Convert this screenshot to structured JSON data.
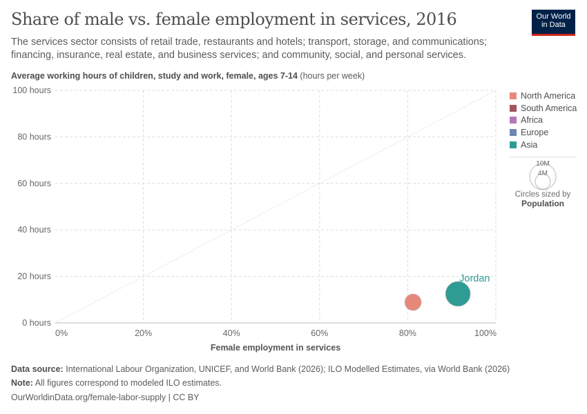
{
  "title": "Share of male vs. female employment in services, 2016",
  "subtitle": "The services sector consists of retail trade, restaurants and hotels; transport, storage, and communications; financing, insurance, real estate, and business services; and community, social, and personal services.",
  "logo": {
    "line1": "Our World",
    "line2": "in Data"
  },
  "y_title": "Average working hours of children, study and work, female, ages 7-14",
  "y_unit": "(hours per week)",
  "legend": [
    {
      "label": "North America",
      "color": "#e6897a"
    },
    {
      "label": "South America",
      "color": "#a2545f"
    },
    {
      "label": "Africa",
      "color": "#b875b9"
    },
    {
      "label": "Europe",
      "color": "#6d87b4"
    },
    {
      "label": "Asia",
      "color": "#2f9c94"
    }
  ],
  "size_legend": {
    "big": "10M",
    "small": "4M",
    "caption": "Circles sized by",
    "variable": "Population"
  },
  "chart_data": {
    "type": "scatter",
    "xlabel": "Female employment in services",
    "ylabel": "Average working hours of children, study and work, female, ages 7-14",
    "xlim": [
      0,
      100
    ],
    "ylim": [
      0,
      100
    ],
    "x_ticks": [
      "0%",
      "20%",
      "40%",
      "60%",
      "80%",
      "100%"
    ],
    "y_ticks": [
      "0 hours",
      "20 hours",
      "40 hours",
      "60 hours",
      "80 hours",
      "100 hours"
    ],
    "grid": true,
    "diagonal_reference_line": true,
    "legend_position": "right",
    "points": [
      {
        "region": "North America",
        "x": 81.2,
        "y": 8.9,
        "label": "",
        "size": "small"
      },
      {
        "region": "Asia",
        "x": 91.4,
        "y": 12.5,
        "label": "Jordan",
        "size": "large"
      }
    ]
  },
  "footer": {
    "source_label": "Data source:",
    "source": "International Labour Organization, UNICEF, and World Bank (2026); ILO Modelled Estimates, via World Bank (2026)",
    "note_label": "Note:",
    "note": "All figures correspond to modeled ILO estimates.",
    "url": "OurWorldinData.org/female-labor-supply | CC BY"
  }
}
